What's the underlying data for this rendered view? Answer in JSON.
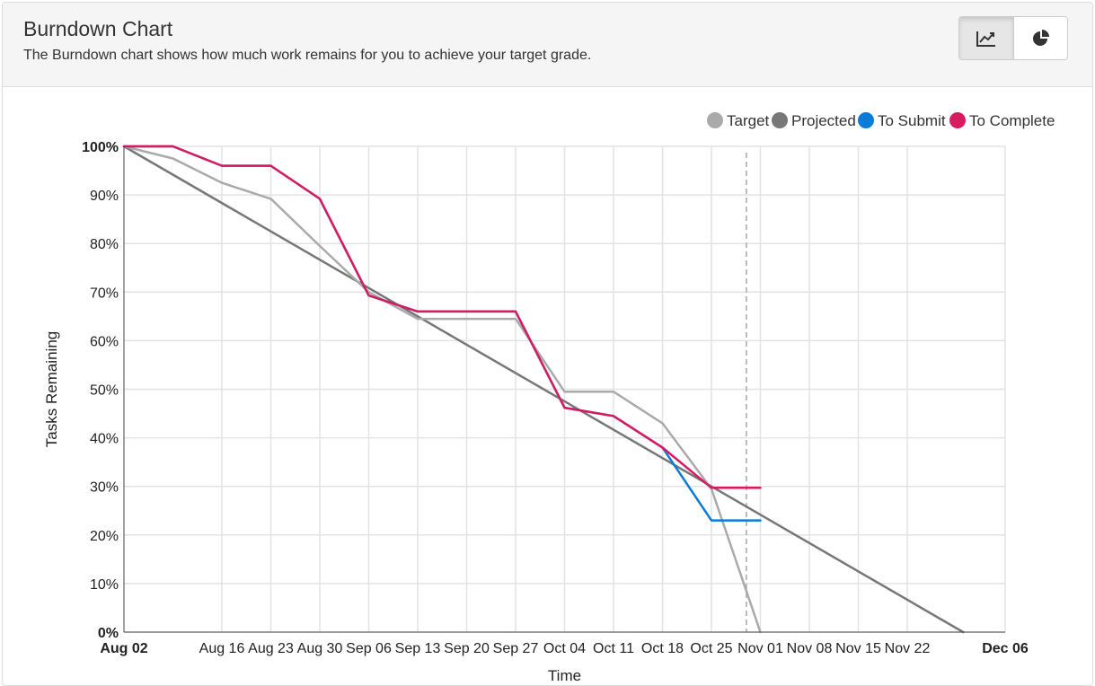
{
  "header": {
    "title": "Burndown Chart",
    "description": "The Burndown chart shows how much work remains for you to achieve your target grade."
  },
  "toolbar": {
    "buttons": [
      {
        "icon": "line-chart-icon",
        "active": true
      },
      {
        "icon": "pie-chart-icon",
        "active": false
      }
    ]
  },
  "colors": {
    "target": "#aaaaaa",
    "projected": "#777777",
    "to_submit": "#0a7bd6",
    "to_complete": "#d81b60",
    "grid": "#e3e3e3",
    "today_line": "#bbbbbb"
  },
  "chart_data": {
    "type": "line",
    "xlabel": "Time",
    "ylabel": "Tasks Remaining",
    "x_ticks": [
      "Aug 02",
      "Aug 16",
      "Aug 23",
      "Aug 30",
      "Sep 06",
      "Sep 13",
      "Sep 20",
      "Sep 27",
      "Oct 04",
      "Oct 11",
      "Oct 18",
      "Oct 25",
      "Nov 01",
      "Nov 08",
      "Nov 15",
      "Nov 22",
      "Dec 06"
    ],
    "x_range": [
      "Aug 02",
      "Dec 06"
    ],
    "y_ticks": [
      "100%",
      "90%",
      "80%",
      "70%",
      "60%",
      "50%",
      "40%",
      "30%",
      "20%",
      "10%",
      "0%"
    ],
    "ylim": [
      0,
      100
    ],
    "today_marker": "Oct 30",
    "legend": [
      "Target",
      "Projected",
      "To Submit",
      "To Complete"
    ],
    "legend_position": "top-right",
    "grid": true,
    "series": [
      {
        "name": "Target",
        "color_key": "target",
        "points": [
          [
            "Aug 02",
            100
          ],
          [
            "Aug 09",
            97.5
          ],
          [
            "Aug 16",
            92.5
          ],
          [
            "Aug 23",
            89.2
          ],
          [
            "Aug 30",
            79.5
          ],
          [
            "Sep 06",
            70
          ],
          [
            "Sep 13",
            64.5
          ],
          [
            "Sep 20",
            64.5
          ],
          [
            "Sep 27",
            64.5
          ],
          [
            "Oct 04",
            49.5
          ],
          [
            "Oct 11",
            49.5
          ],
          [
            "Oct 18",
            43
          ],
          [
            "Oct 25",
            29.5
          ],
          [
            "Nov 01",
            0
          ]
        ]
      },
      {
        "name": "Projected",
        "color_key": "projected",
        "points": [
          [
            "Aug 02",
            100
          ],
          [
            "Nov 30",
            0
          ]
        ]
      },
      {
        "name": "To Submit",
        "color_key": "to_submit",
        "points": [
          [
            "Aug 02",
            100
          ],
          [
            "Aug 09",
            100
          ],
          [
            "Aug 16",
            96
          ],
          [
            "Aug 23",
            96
          ],
          [
            "Aug 30",
            89.2
          ],
          [
            "Sep 06",
            69.3
          ],
          [
            "Sep 13",
            66
          ],
          [
            "Sep 20",
            66
          ],
          [
            "Sep 27",
            66
          ],
          [
            "Oct 04",
            46.2
          ],
          [
            "Oct 11",
            44.5
          ],
          [
            "Oct 18",
            38
          ],
          [
            "Oct 25",
            23
          ],
          [
            "Nov 01",
            23
          ]
        ]
      },
      {
        "name": "To Complete",
        "color_key": "to_complete",
        "points": [
          [
            "Aug 02",
            100
          ],
          [
            "Aug 09",
            100
          ],
          [
            "Aug 16",
            96
          ],
          [
            "Aug 23",
            96
          ],
          [
            "Aug 30",
            89.2
          ],
          [
            "Sep 06",
            69.3
          ],
          [
            "Sep 13",
            66
          ],
          [
            "Sep 20",
            66
          ],
          [
            "Sep 27",
            66
          ],
          [
            "Oct 04",
            46.2
          ],
          [
            "Oct 11",
            44.5
          ],
          [
            "Oct 18",
            38
          ],
          [
            "Oct 25",
            29.7
          ],
          [
            "Nov 01",
            29.7
          ]
        ]
      }
    ]
  }
}
